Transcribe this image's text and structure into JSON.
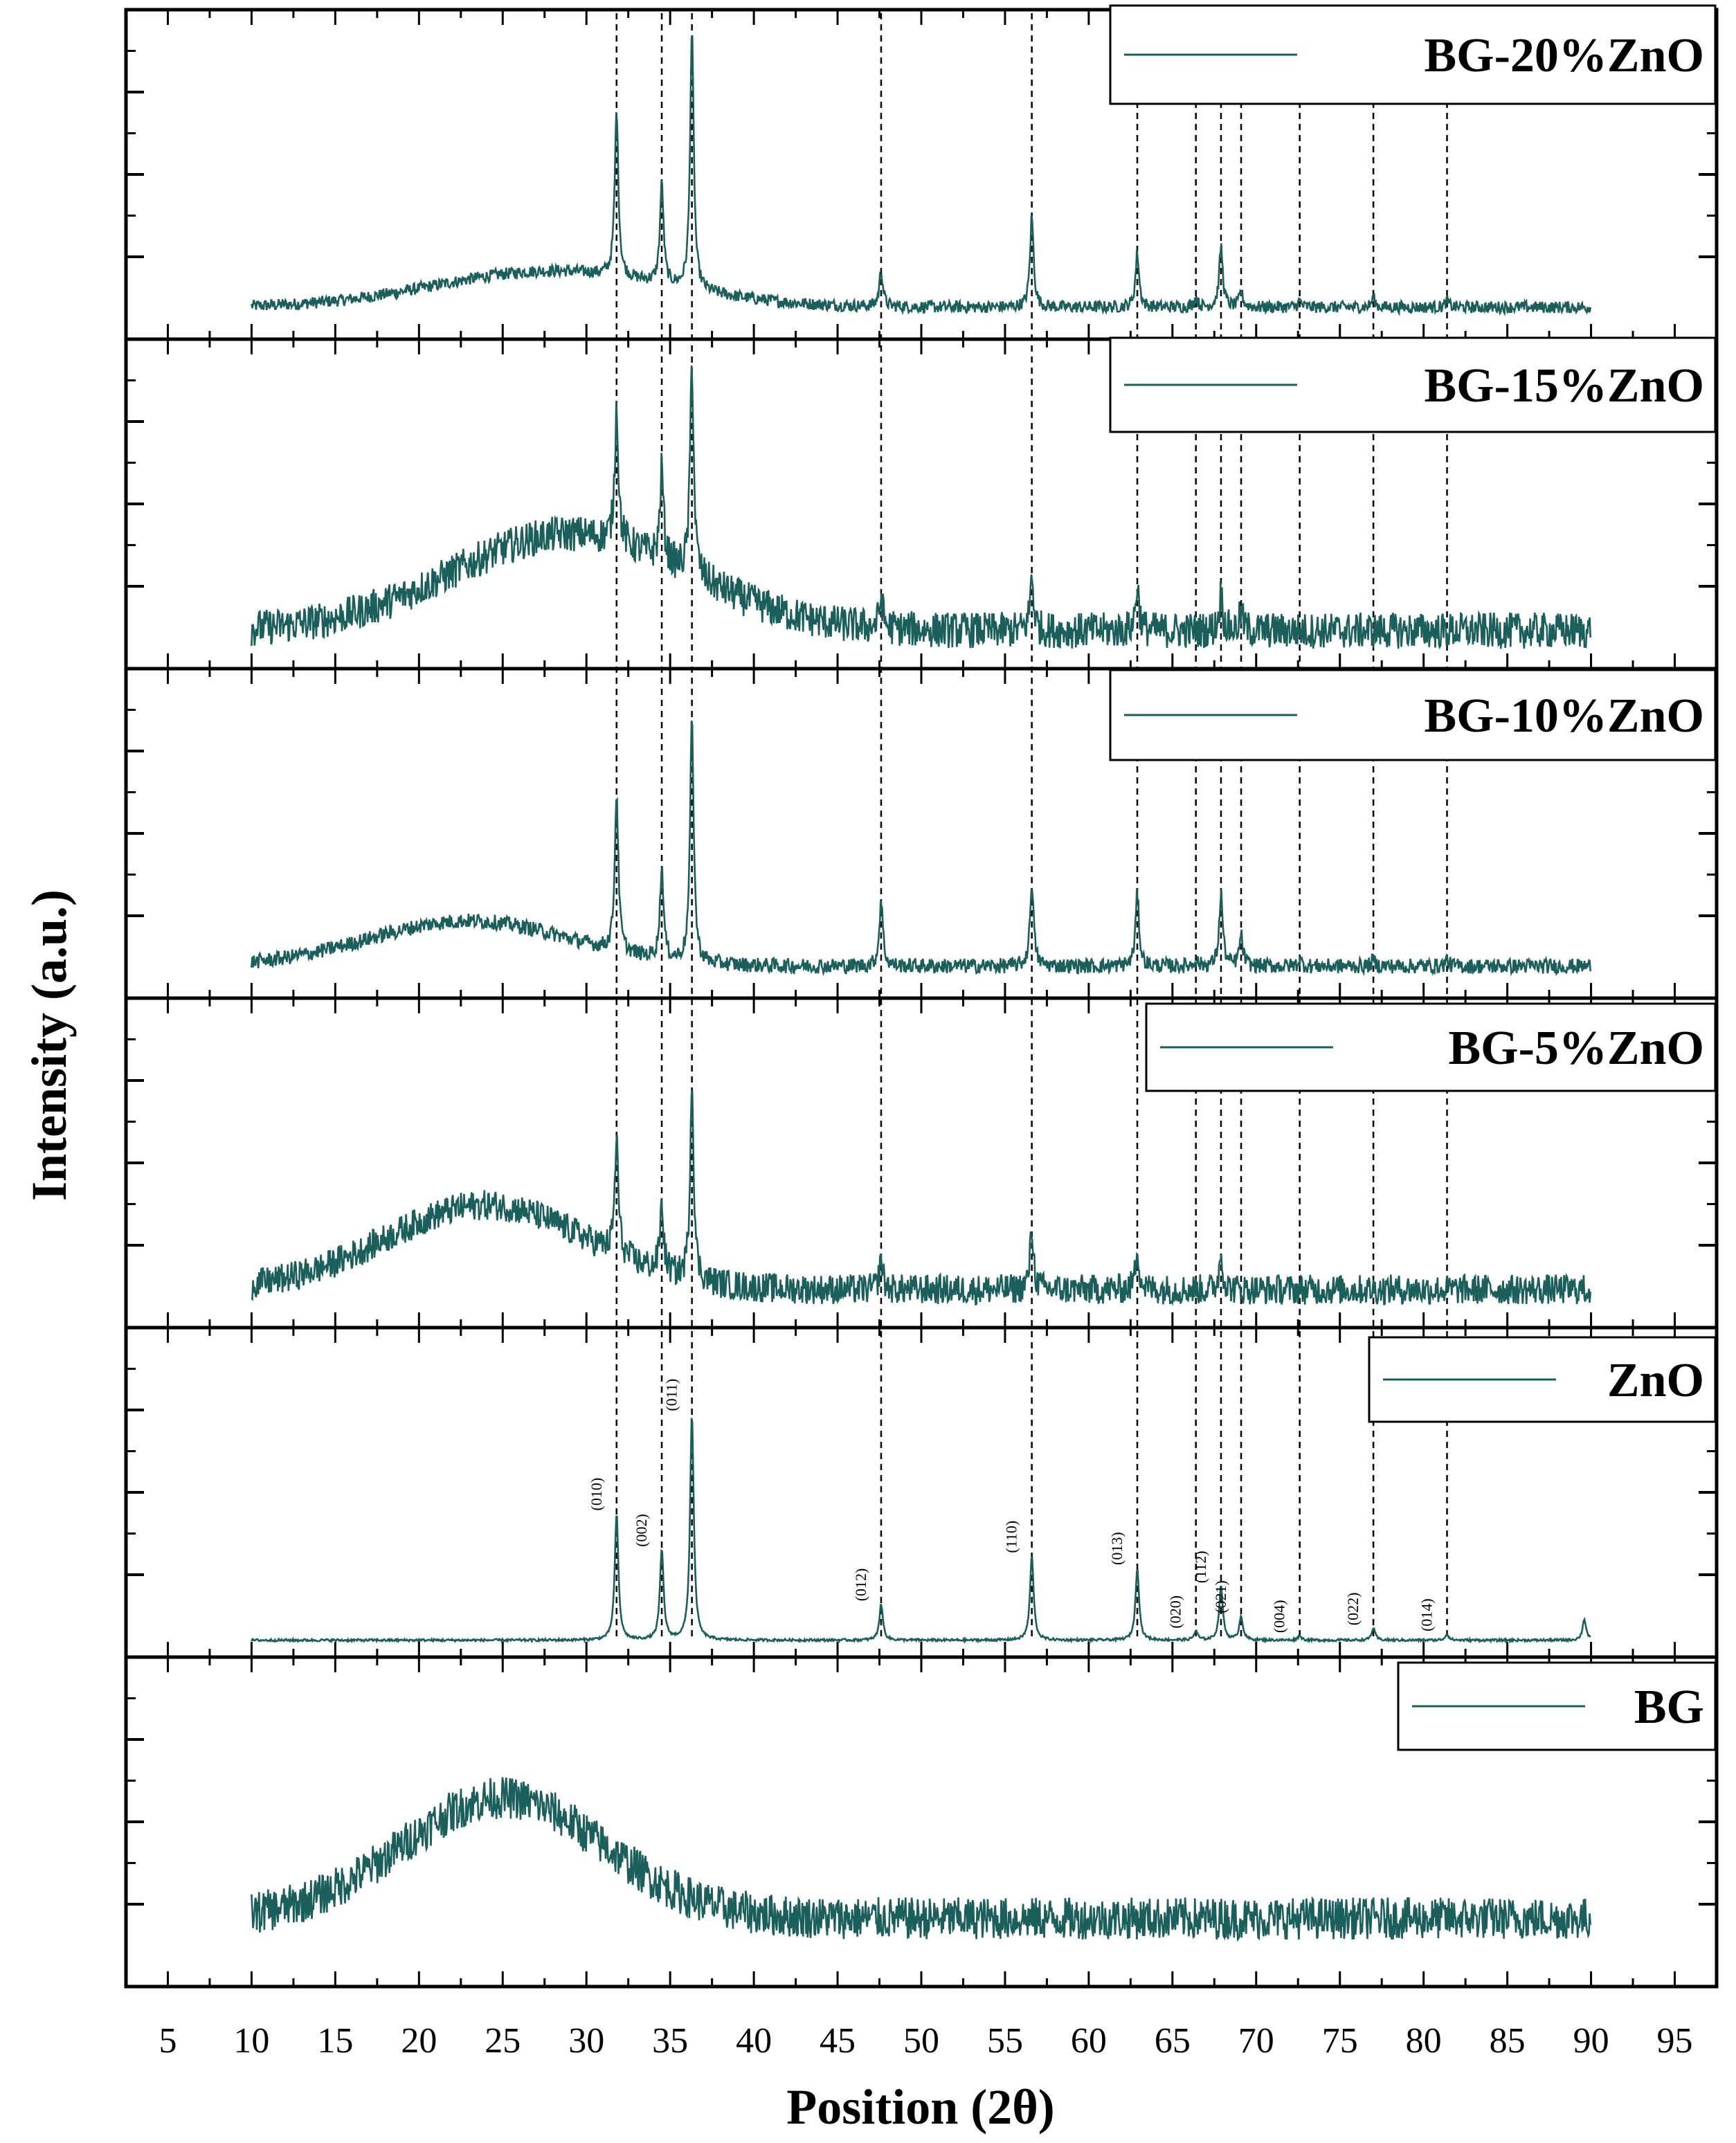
{
  "chart_data": {
    "type": "line",
    "layout": "stacked panels",
    "xlabel": "Position (2θ)",
    "ylabel": "Intensity (a.u.)",
    "xlim": [
      2.5,
      97.5
    ],
    "x_ticks": [
      "5",
      "10",
      "15",
      "20",
      "25",
      "30",
      "35",
      "40",
      "45",
      "50",
      "55",
      "60",
      "65",
      "70",
      "75",
      "80",
      "85",
      "90",
      "95"
    ],
    "x_range_data": [
      10,
      90
    ],
    "reference_lines_2theta": [
      31.8,
      34.5,
      36.3,
      47.6,
      56.6,
      62.9,
      66.4,
      67.9,
      69.1,
      72.6,
      77.0,
      81.4
    ],
    "panels": [
      {
        "legend": "BG-20%ZnO",
        "ylim": [
          0,
          100
        ],
        "baseline": 6,
        "hump": {
          "center": 28,
          "width": 7,
          "height": 12
        },
        "noise": 2,
        "peaks": [
          [
            31.8,
            55
          ],
          [
            34.5,
            33
          ],
          [
            36.3,
            85
          ],
          [
            47.6,
            12
          ],
          [
            56.6,
            30
          ],
          [
            62.9,
            18
          ],
          [
            66.4,
            3
          ],
          [
            67.9,
            20
          ],
          [
            69.1,
            5
          ],
          [
            72.6,
            2
          ],
          [
            77.0,
            3
          ],
          [
            81.4,
            2
          ]
        ]
      },
      {
        "legend": "BG-15%ZnO",
        "ylim": [
          0,
          100
        ],
        "baseline": 8,
        "hump": {
          "center": 29,
          "width": 7,
          "height": 32
        },
        "noise": 6,
        "peaks": [
          [
            31.8,
            45
          ],
          [
            34.5,
            30
          ],
          [
            36.3,
            70
          ],
          [
            47.6,
            10
          ],
          [
            56.6,
            18
          ],
          [
            62.9,
            15
          ],
          [
            67.9,
            12
          ],
          [
            69.1,
            6
          ]
        ]
      },
      {
        "legend": "BG-10%ZnO",
        "ylim": [
          0,
          100
        ],
        "baseline": 6,
        "hump": {
          "center": 23,
          "width": 6,
          "height": 15
        },
        "noise": 2.5,
        "peaks": [
          [
            31.8,
            52
          ],
          [
            34.5,
            30
          ],
          [
            36.3,
            80
          ],
          [
            47.6,
            22
          ],
          [
            56.6,
            28
          ],
          [
            62.9,
            24
          ],
          [
            66.4,
            2
          ],
          [
            67.9,
            24
          ],
          [
            69.1,
            10
          ],
          [
            72.6,
            2
          ],
          [
            77.0,
            2
          ],
          [
            81.4,
            2
          ]
        ]
      },
      {
        "legend": "BG-5%ZnO",
        "ylim": [
          0,
          100
        ],
        "baseline": 8,
        "hump": {
          "center": 24,
          "width": 6,
          "height": 28
        },
        "noise": 5,
        "peaks": [
          [
            31.8,
            38
          ],
          [
            34.5,
            22
          ],
          [
            36.3,
            65
          ],
          [
            47.6,
            10
          ],
          [
            56.6,
            20
          ],
          [
            62.9,
            14
          ],
          [
            67.9,
            12
          ]
        ]
      },
      {
        "legend": "ZnO",
        "ylim": [
          0,
          100
        ],
        "baseline": 1,
        "hump": {
          "center": 30,
          "width": 10,
          "height": 0
        },
        "noise": 0.4,
        "peaks": [
          [
            31.8,
            42
          ],
          [
            34.5,
            30
          ],
          [
            36.3,
            75
          ],
          [
            47.6,
            12
          ],
          [
            56.6,
            28
          ],
          [
            62.9,
            24
          ],
          [
            66.4,
            3
          ],
          [
            67.9,
            18
          ],
          [
            69.1,
            8
          ],
          [
            72.6,
            1.5
          ],
          [
            77.0,
            4
          ],
          [
            81.4,
            2
          ],
          [
            89.6,
            7
          ]
        ]
      },
      {
        "legend": "BG",
        "ylim": [
          0,
          100
        ],
        "baseline": 18,
        "hump": {
          "center": 25,
          "width": 6,
          "height": 40
        },
        "noise": 7,
        "peaks": []
      }
    ],
    "hkl_labels": [
      {
        "text": "(010)",
        "x": 31.8
      },
      {
        "text": "(002)",
        "x": 34.5
      },
      {
        "text": "(011)",
        "x": 36.3
      },
      {
        "text": "(012)",
        "x": 47.6
      },
      {
        "text": "(110)",
        "x": 56.6
      },
      {
        "text": "(013)",
        "x": 62.9
      },
      {
        "text": "(020)",
        "x": 66.4
      },
      {
        "text": "(112)",
        "x": 67.9
      },
      {
        "text": "(021)",
        "x": 69.1
      },
      {
        "text": "(004)",
        "x": 72.6
      },
      {
        "text": "(022)",
        "x": 77.0
      },
      {
        "text": "(014)",
        "x": 81.4
      }
    ],
    "colors": {
      "line": "#1a5f5c",
      "axis": "#000000",
      "dash": "#000000"
    }
  }
}
